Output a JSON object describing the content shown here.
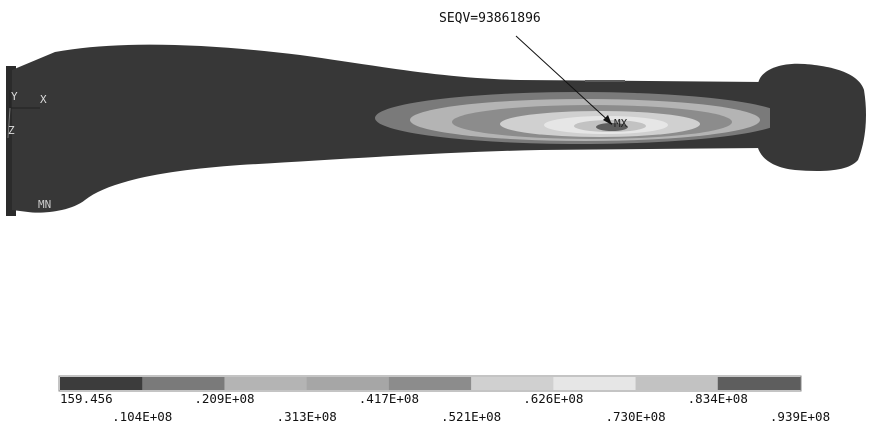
{
  "annotation": {
    "max_label": "SEQV=93861896",
    "max_marker": "MX",
    "min_marker": "MN"
  },
  "axis_triad": {
    "y_label": "Y",
    "x_label": "X",
    "z_label": "Z"
  },
  "legend": {
    "colors": [
      "#3c3c3c",
      "#7a7a7a",
      "#b4b4b4",
      "#a6a6a6",
      "#8c8c8c",
      "#d0d0d0",
      "#e6e6e6",
      "#c2c2c2",
      "#5e5e5e"
    ],
    "upper_labels": [
      "159.456",
      ".209E+08",
      ".417E+08",
      ".626E+08",
      ".834E+08"
    ],
    "lower_labels": [
      ".104E+08",
      ".313E+08",
      ".521E+08",
      ".730E+08",
      ".939E+08"
    ]
  }
}
